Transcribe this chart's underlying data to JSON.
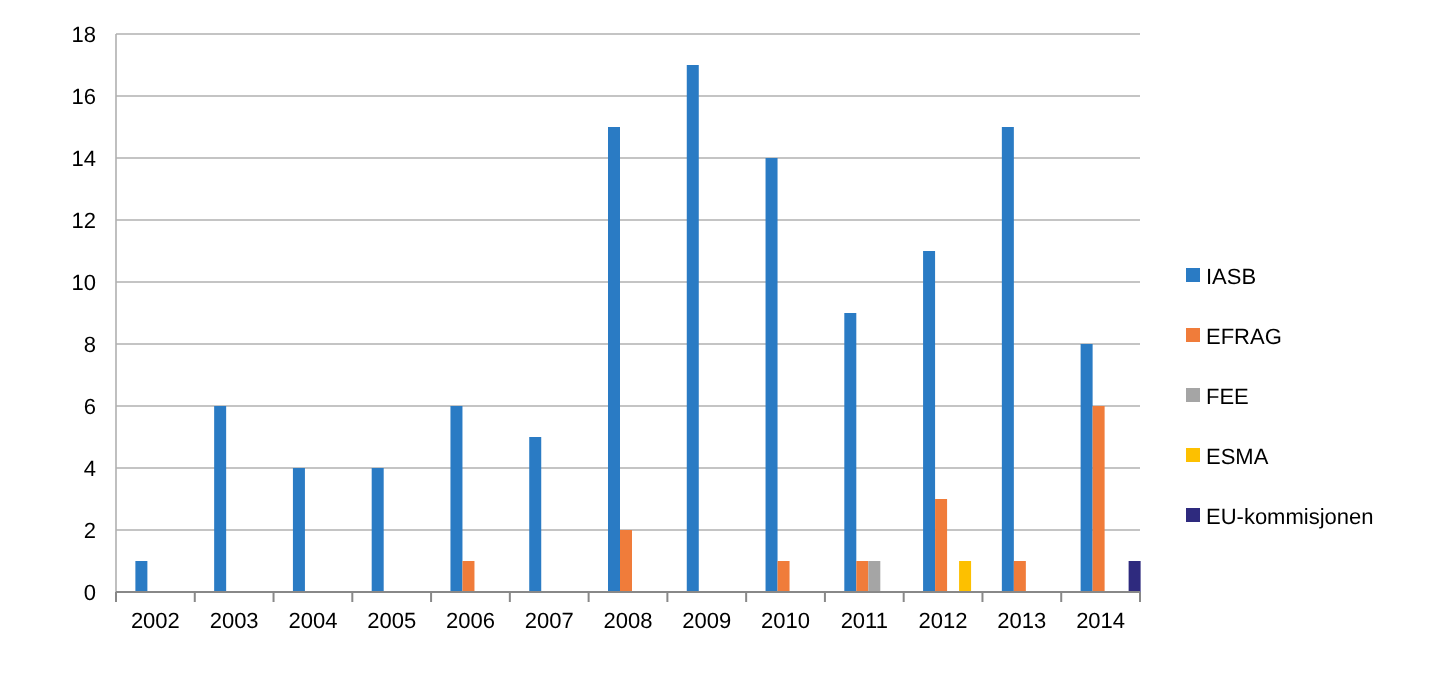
{
  "chart_data": {
    "type": "bar",
    "categories": [
      "2002",
      "2003",
      "2004",
      "2005",
      "2006",
      "2007",
      "2008",
      "2009",
      "2010",
      "2011",
      "2012",
      "2013",
      "2014"
    ],
    "series": [
      {
        "name": "IASB",
        "color": "#2a7bc4",
        "values": [
          1,
          6,
          4,
          4,
          6,
          5,
          15,
          17,
          14,
          9,
          11,
          15,
          8
        ]
      },
      {
        "name": "EFRAG",
        "color": "#f07c3a",
        "values": [
          0,
          0,
          0,
          0,
          1,
          0,
          2,
          0,
          1,
          1,
          3,
          1,
          6
        ]
      },
      {
        "name": "FEE",
        "color": "#a5a5a5",
        "values": [
          0,
          0,
          0,
          0,
          0,
          0,
          0,
          0,
          0,
          1,
          0,
          0,
          0
        ]
      },
      {
        "name": "ESMA",
        "color": "#fdc000",
        "values": [
          0,
          0,
          0,
          0,
          0,
          0,
          0,
          0,
          0,
          0,
          1,
          0,
          0
        ]
      },
      {
        "name": "EU-kommisjonen",
        "color": "#2e2a7e",
        "values": [
          0,
          0,
          0,
          0,
          0,
          0,
          0,
          0,
          0,
          0,
          0,
          0,
          1
        ]
      }
    ],
    "ylim": [
      0,
      18
    ],
    "yticks": [
      0,
      2,
      4,
      6,
      8,
      10,
      12,
      14,
      16,
      18
    ],
    "grid": "y",
    "legend": "right"
  }
}
